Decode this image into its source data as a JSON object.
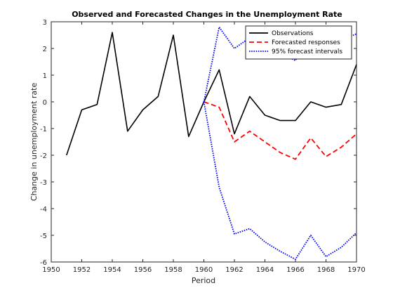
{
  "chart_data": {
    "type": "line",
    "title": "Observed and Forecasted Changes in the Unemployment Rate",
    "xlabel": "Period",
    "ylabel": "Change in unemployment rate",
    "xlim": [
      1950,
      1970
    ],
    "ylim": [
      -6,
      3
    ],
    "xticks": [
      "1950",
      "1952",
      "1954",
      "1956",
      "1958",
      "1960",
      "1962",
      "1964",
      "1966",
      "1968",
      "1970"
    ],
    "yticks": [
      "3",
      "2",
      "1",
      "0",
      "-1",
      "-2",
      "-3",
      "-4",
      "-5",
      "-6"
    ],
    "grid": false,
    "legend_position": "top-right",
    "series": [
      {
        "name": "Observations",
        "color": "#000000",
        "style": "solid",
        "x": [
          1951,
          1952,
          1953,
          1954,
          1955,
          1956,
          1957,
          1958,
          1959,
          1960,
          1961,
          1962,
          1963,
          1964,
          1965,
          1966,
          1967,
          1968,
          1969,
          1970
        ],
        "y": [
          -2.0,
          -0.3,
          -0.1,
          2.6,
          -1.1,
          -0.3,
          0.2,
          2.5,
          -1.3,
          0.0,
          1.2,
          -1.2,
          0.2,
          -0.5,
          -0.7,
          -0.7,
          0.0,
          -0.2,
          -0.1,
          1.4
        ]
      },
      {
        "name": "Forecasted responses",
        "color": "#ff0000",
        "style": "dashed",
        "x": [
          1960,
          1961,
          1962,
          1963,
          1964,
          1965,
          1966,
          1967,
          1968,
          1969,
          1970
        ],
        "y": [
          0.0,
          -0.2,
          -1.5,
          -1.1,
          -1.5,
          -1.9,
          -2.15,
          -1.35,
          -2.05,
          -1.7,
          -1.2
        ]
      },
      {
        "name": "95% forecast intervals",
        "color": "#0000ff",
        "style": "dotted",
        "x": [
          1960,
          1961,
          1962,
          1963,
          1964,
          1965,
          1966,
          1967,
          1968,
          1969,
          1970
        ],
        "y": [
          0.0,
          2.8,
          2.0,
          2.4,
          2.1,
          1.8,
          1.55,
          2.6,
          1.65,
          2.3,
          2.55
        ]
      },
      {
        "name": "",
        "color": "#0000ff",
        "style": "dotted",
        "x": [
          1960,
          1961,
          1962,
          1963,
          1964,
          1965,
          1966,
          1967,
          1968,
          1969,
          1970
        ],
        "y": [
          0.0,
          -3.2,
          -4.95,
          -4.75,
          -5.25,
          -5.6,
          -5.9,
          -5.0,
          -5.8,
          -5.45,
          -4.9
        ]
      }
    ]
  }
}
